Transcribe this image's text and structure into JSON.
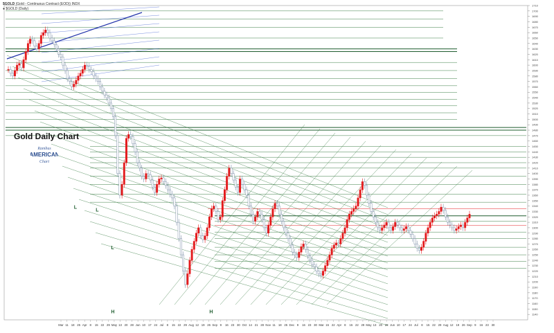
{
  "header": {
    "symbol": "$GOLD",
    "description": "(Gold - Continuous Contract (EOD)) INDX",
    "sub": "● $GOLD (Daily)"
  },
  "chart_title": "Gold Daily Chart",
  "logo_text": {
    "line1": "Rambus",
    "line2": "AMERICAN",
    "line3": "Chart"
  },
  "colors": {
    "up_candle": "#e41a1c",
    "down_candle": "#7d8fa8",
    "green_line": "#3a7d44",
    "dark_green_line": "#1e5c2e",
    "blue_line": "#3a5bd0",
    "red_line": "#e41a1c",
    "grid": "#e8e8e8"
  },
  "chart_data": {
    "type": "candlestick",
    "title": "Gold Daily Chart",
    "y_axis_side": "right",
    "ylim": [
      1130,
      1710
    ],
    "yticks": [
      1710,
      1700,
      1690,
      1680,
      1670,
      1660,
      1650,
      1640,
      1630,
      1620,
      1610,
      1600,
      1590,
      1580,
      1570,
      1560,
      1550,
      1540,
      1530,
      1520,
      1510,
      1500,
      1490,
      1480,
      1470,
      1460,
      1450,
      1440,
      1430,
      1420,
      1410,
      1400,
      1390,
      1380,
      1370,
      1360,
      1350,
      1340,
      1330,
      1320,
      1310,
      1300,
      1290,
      1280,
      1270,
      1260,
      1250,
      1240,
      1230,
      1220,
      1210,
      1200,
      1190,
      1180,
      1170,
      1160,
      1150,
      1140
    ],
    "xticks": [
      "Mar",
      "11",
      "18",
      "25",
      "Apr",
      "8",
      "15",
      "22",
      "29",
      "May",
      "13",
      "20",
      "28",
      "Jun",
      "10",
      "17",
      "24",
      "Jul",
      "8",
      "15",
      "22",
      "29",
      "Aug",
      "12",
      "19",
      "26",
      "Sep",
      "9",
      "16",
      "23",
      "30",
      "Oct",
      "14",
      "21",
      "28",
      "Nov",
      "11",
      "18",
      "25",
      "Dec",
      "9",
      "16",
      "23",
      "30",
      "Mar",
      "15",
      "22",
      "Apr",
      "8",
      "15",
      "22",
      "29",
      "May",
      "13",
      "20",
      "28",
      "Jun",
      "10",
      "17",
      "24",
      "Jul",
      "8",
      "15",
      "22",
      "29",
      "Aug",
      "12",
      "19",
      "26",
      "Sep",
      "9",
      "16",
      "23",
      "30"
    ],
    "annotations": [
      {
        "label": "L",
        "x_index": 30,
        "y": 1335
      },
      {
        "label": "L",
        "x_index": 40,
        "y": 1330
      },
      {
        "label": "L",
        "x_index": 47,
        "y": 1260
      },
      {
        "label": "H",
        "x_index": 47,
        "y": 1142
      },
      {
        "label": "H",
        "x_index": 92,
        "y": 1142
      }
    ],
    "ohlc_close": [
      1592,
      1585,
      1580,
      1590,
      1600,
      1603,
      1595,
      1610,
      1625,
      1640,
      1648,
      1645,
      1635,
      1630,
      1640,
      1655,
      1660,
      1665,
      1660,
      1650,
      1645,
      1638,
      1630,
      1620,
      1615,
      1600,
      1590,
      1575,
      1570,
      1560,
      1565,
      1572,
      1580,
      1585,
      1592,
      1600,
      1598,
      1592,
      1588,
      1580,
      1575,
      1570,
      1560,
      1552,
      1545,
      1540,
      1530,
      1520,
      1505,
      1470,
      1400,
      1360,
      1380,
      1420,
      1465,
      1472,
      1468,
      1455,
      1440,
      1420,
      1410,
      1395,
      1390,
      1400,
      1398,
      1388,
      1375,
      1365,
      1380,
      1390,
      1392,
      1385,
      1378,
      1370,
      1362,
      1355,
      1340,
      1310,
      1280,
      1250,
      1220,
      1195,
      1215,
      1240,
      1260,
      1275,
      1290,
      1300,
      1285,
      1278,
      1285,
      1300,
      1320,
      1335,
      1340,
      1330,
      1315,
      1320,
      1350,
      1370,
      1395,
      1410,
      1400,
      1388,
      1375,
      1365,
      1390,
      1380,
      1370,
      1360,
      1340,
      1325,
      1312,
      1320,
      1330,
      1325,
      1315,
      1300,
      1290,
      1305,
      1320,
      1335,
      1345,
      1340,
      1325,
      1312,
      1300,
      1290,
      1280,
      1268,
      1255,
      1250,
      1245,
      1255,
      1265,
      1270,
      1260,
      1248,
      1240,
      1232,
      1228,
      1220,
      1215,
      1212,
      1220,
      1230,
      1240,
      1250,
      1262,
      1268,
      1272,
      1270,
      1280,
      1290,
      1300,
      1315,
      1325,
      1330,
      1335,
      1340,
      1355,
      1370,
      1385,
      1378,
      1360,
      1345,
      1330,
      1320,
      1310,
      1300,
      1295,
      1300,
      1305,
      1310,
      1300,
      1295,
      1302,
      1310,
      1305,
      1300,
      1295,
      1298,
      1302,
      1295,
      1288,
      1280,
      1270,
      1262,
      1258,
      1264,
      1275,
      1290,
      1300,
      1310,
      1318,
      1322,
      1325,
      1330,
      1338,
      1332,
      1320,
      1310,
      1305,
      1300,
      1295,
      1298,
      1302,
      1305,
      1300,
      1310,
      1318,
      1325
    ]
  }
}
